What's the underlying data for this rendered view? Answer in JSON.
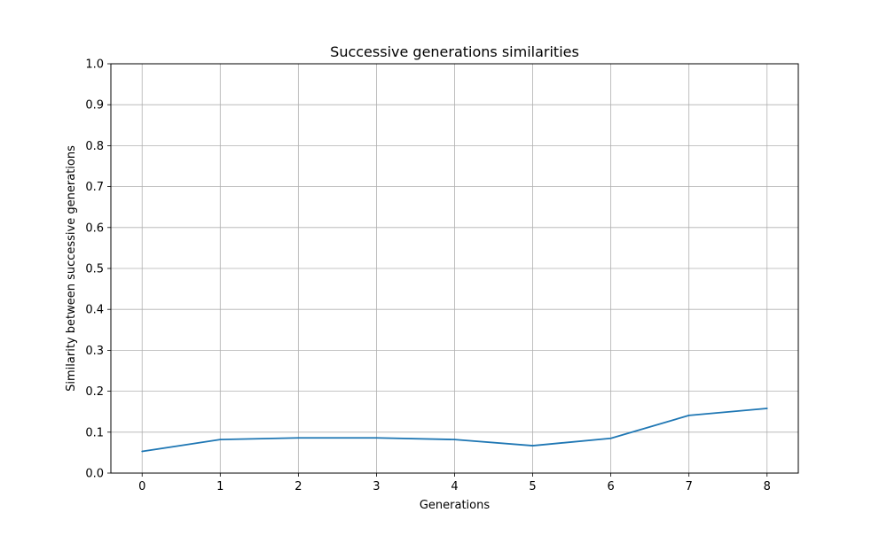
{
  "chart_data": {
    "type": "line",
    "title": "Successive generations similarities",
    "xlabel": "Generations",
    "ylabel": "Similarity between successive generations",
    "x": [
      0,
      1,
      2,
      3,
      4,
      5,
      6,
      7,
      8
    ],
    "series": [
      {
        "values": [
          0.053,
          0.082,
          0.086,
          0.086,
          0.082,
          0.067,
          0.085,
          0.141,
          0.158
        ],
        "color": "#1f77b4"
      }
    ],
    "xlim": [
      -0.4,
      8.4
    ],
    "ylim": [
      0,
      1
    ],
    "xticks": [
      "0",
      "1",
      "2",
      "3",
      "4",
      "5",
      "6",
      "7",
      "8"
    ],
    "yticks": [
      "0.0",
      "0.1",
      "0.2",
      "0.3",
      "0.4",
      "0.5",
      "0.6",
      "0.7",
      "0.8",
      "0.9",
      "1.0"
    ],
    "grid": true,
    "legend": "none"
  }
}
